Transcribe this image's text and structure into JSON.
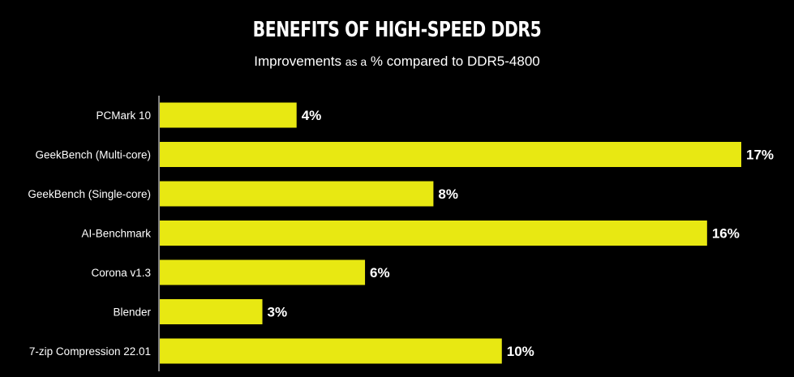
{
  "chart_data": {
    "type": "bar",
    "orientation": "horizontal",
    "title": "BENEFITS OF HIGH-SPEED DDR5",
    "subtitle": {
      "part1": "Improvements",
      "part2": "as a",
      "part3": "% compared to DDR5-4800"
    },
    "categories": [
      "PCMark 10",
      "GeekBench (Multi-core)",
      "GeekBench (Single-core)",
      "AI-Benchmark",
      "Corona v1.3",
      "Blender",
      "7-zip Compression 22.01"
    ],
    "values": [
      4,
      17,
      8,
      16,
      6,
      3,
      10
    ],
    "value_labels": [
      "4%",
      "17%",
      "8%",
      "16%",
      "6%",
      "3%",
      "10%"
    ],
    "unit": "%",
    "xlim": [
      0,
      17
    ],
    "grid": false,
    "legend": "none",
    "bar_color": "#e8e812",
    "axis_color": "#ffffff",
    "background_color": "#000000"
  }
}
